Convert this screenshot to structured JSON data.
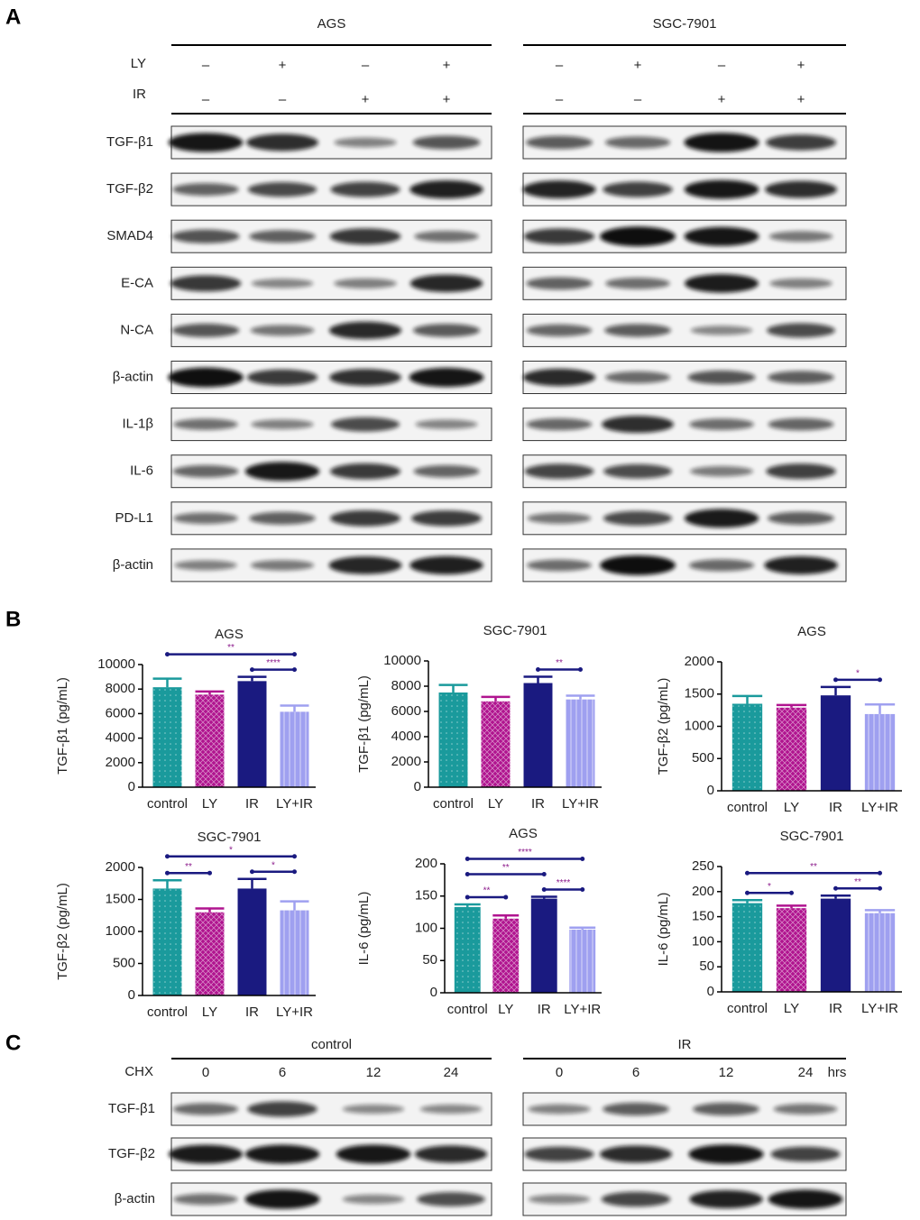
{
  "panel_a": {
    "letter": "A",
    "groups": [
      "AGS",
      "SGC-7901"
    ],
    "conditions": [
      {
        "label": "LY",
        "values": [
          "–",
          "+",
          "–",
          "+"
        ]
      },
      {
        "label": "IR",
        "values": [
          "–",
          "–",
          "+",
          "+"
        ]
      }
    ],
    "rows": [
      "TGF-β1",
      "TGF-β2",
      "SMAD4",
      "E-CA",
      "N-CA",
      "β-actin",
      "IL-1β",
      "IL-6",
      "PD-L1",
      "β-actin"
    ]
  },
  "panel_b": {
    "letter": "B"
  },
  "chart_data": [
    {
      "type": "bar",
      "title": "AGS",
      "ylabel": "TGF-β1 (pg/mL)",
      "categories": [
        "control",
        "LY",
        "IR",
        "LY+IR"
      ],
      "values": [
        8150,
        7550,
        8650,
        6150
      ],
      "errors": [
        700,
        250,
        350,
        500
      ],
      "colors": [
        "#1a9a9c",
        "#b0148f",
        "#1a1a80",
        "#9fa0f0"
      ],
      "ylim": [
        0,
        10000
      ],
      "yticks": [
        0,
        2000,
        4000,
        6000,
        8000,
        10000
      ],
      "significance": [
        {
          "pair": [
            "control",
            "LY+IR"
          ],
          "label": "**"
        },
        {
          "pair": [
            "IR",
            "LY+IR"
          ],
          "label": "****"
        }
      ]
    },
    {
      "type": "bar",
      "title": "SGC-7901",
      "ylabel": "TGF-β1 (pg/mL)",
      "categories": [
        "control",
        "LY",
        "IR",
        "LY+IR"
      ],
      "values": [
        7500,
        6800,
        8250,
        6950
      ],
      "errors": [
        600,
        350,
        500,
        300
      ],
      "colors": [
        "#1a9a9c",
        "#b0148f",
        "#1a1a80",
        "#9fa0f0"
      ],
      "ylim": [
        0,
        10000
      ],
      "yticks": [
        0,
        2000,
        4000,
        6000,
        8000,
        10000
      ],
      "significance": [
        {
          "pair": [
            "IR",
            "LY+IR"
          ],
          "label": "**"
        }
      ]
    },
    {
      "type": "bar",
      "title": "AGS",
      "ylabel": "TGF-β2 (pg/mL)",
      "categories": [
        "control",
        "LY",
        "IR",
        "LY+IR"
      ],
      "values": [
        1350,
        1290,
        1480,
        1190
      ],
      "errors": [
        120,
        40,
        130,
        150
      ],
      "colors": [
        "#1a9a9c",
        "#b0148f",
        "#1a1a80",
        "#9fa0f0"
      ],
      "ylim": [
        0,
        2000
      ],
      "yticks": [
        0,
        500,
        1000,
        1500,
        2000
      ],
      "significance": [
        {
          "pair": [
            "IR",
            "LY+IR"
          ],
          "label": "*"
        }
      ]
    },
    {
      "type": "bar",
      "title": "SGC-7901",
      "ylabel": "TGF-β2 (pg/mL)",
      "categories": [
        "control",
        "LY",
        "IR",
        "LY+IR"
      ],
      "values": [
        1670,
        1300,
        1670,
        1330
      ],
      "errors": [
        130,
        60,
        150,
        140
      ],
      "colors": [
        "#1a9a9c",
        "#b0148f",
        "#1a1a80",
        "#9fa0f0"
      ],
      "ylim": [
        0,
        2000
      ],
      "yticks": [
        0,
        500,
        1000,
        1500,
        2000
      ],
      "significance": [
        {
          "pair": [
            "control",
            "LY+IR"
          ],
          "label": "*"
        },
        {
          "pair": [
            "control",
            "LY"
          ],
          "label": "**"
        },
        {
          "pair": [
            "IR",
            "LY+IR"
          ],
          "label": "*"
        }
      ]
    },
    {
      "type": "bar",
      "title": "AGS",
      "ylabel": "IL-6 (pg/mL)",
      "categories": [
        "control",
        "LY",
        "IR",
        "LY+IR"
      ],
      "values": [
        133,
        115,
        146,
        98
      ],
      "errors": [
        4,
        5,
        3,
        3
      ],
      "colors": [
        "#1a9a9c",
        "#b0148f",
        "#1a1a80",
        "#9fa0f0"
      ],
      "ylim": [
        0,
        200
      ],
      "yticks": [
        0,
        50,
        100,
        150,
        200
      ],
      "significance": [
        {
          "pair": [
            "control",
            "LY+IR"
          ],
          "label": "****"
        },
        {
          "pair": [
            "control",
            "IR"
          ],
          "label": "**"
        },
        {
          "pair": [
            "control",
            "LY"
          ],
          "label": "**"
        },
        {
          "pair": [
            "IR",
            "LY+IR"
          ],
          "label": "****"
        }
      ]
    },
    {
      "type": "bar",
      "title": "SGC-7901",
      "ylabel": "IL-6 (pg/mL)",
      "categories": [
        "control",
        "LY",
        "IR",
        "LY+IR"
      ],
      "values": [
        177,
        167,
        186,
        157
      ],
      "errors": [
        6,
        5,
        6,
        6
      ],
      "colors": [
        "#1a9a9c",
        "#b0148f",
        "#1a1a80",
        "#9fa0f0"
      ],
      "ylim": [
        0,
        250
      ],
      "yticks": [
        0,
        50,
        100,
        150,
        200,
        250
      ],
      "significance": [
        {
          "pair": [
            "control",
            "LY+IR"
          ],
          "label": "**"
        },
        {
          "pair": [
            "control",
            "LY"
          ],
          "label": "*"
        },
        {
          "pair": [
            "IR",
            "LY+IR"
          ],
          "label": "**"
        }
      ]
    }
  ],
  "panel_c": {
    "letter": "C",
    "groups": [
      "control",
      "IR"
    ],
    "row_label": "CHX",
    "times": [
      "0",
      "6",
      "12",
      "24"
    ],
    "unit": "hrs",
    "rows": [
      "TGF-β1",
      "TGF-β2",
      "β-actin"
    ]
  }
}
